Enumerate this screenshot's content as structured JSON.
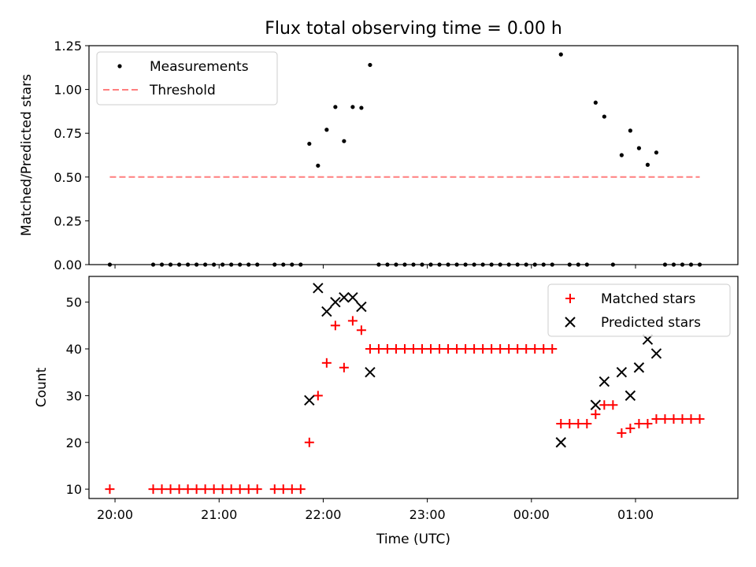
{
  "chart_data": {
    "title": "Flux total observing time = 0.00 h",
    "xlabel": "Time (UTC)",
    "x_tick_labels": [
      "20:00",
      "21:00",
      "22:00",
      "23:00",
      "00:00",
      "01:00"
    ],
    "colors": {
      "measurements": "#000000",
      "threshold": "#ff7f7f",
      "matched": "#ff0000",
      "predicted": "#000000"
    },
    "panels": [
      {
        "type": "scatter",
        "ylabel": "Matched/Predicted stars",
        "ylim": [
          0,
          1.25
        ],
        "y_ticks": [
          "0.00",
          "0.25",
          "0.50",
          "0.75",
          "1.00",
          "1.25"
        ],
        "legend_position": "upper left",
        "series": [
          {
            "name": "Measurements",
            "style": "dot",
            "points": [
              [
                "19:57",
                0
              ],
              [
                "20:22",
                0
              ],
              [
                "20:27",
                0
              ],
              [
                "20:32",
                0
              ],
              [
                "20:37",
                0
              ],
              [
                "20:42",
                0
              ],
              [
                "20:47",
                0
              ],
              [
                "20:52",
                0
              ],
              [
                "20:57",
                0
              ],
              [
                "21:02",
                0
              ],
              [
                "21:07",
                0
              ],
              [
                "21:12",
                0
              ],
              [
                "21:17",
                0
              ],
              [
                "21:22",
                0
              ],
              [
                "21:32",
                0
              ],
              [
                "21:37",
                0
              ],
              [
                "21:42",
                0
              ],
              [
                "21:47",
                0
              ],
              [
                "21:52",
                0.69
              ],
              [
                "21:57",
                0.565
              ],
              [
                "22:02",
                0.77
              ],
              [
                "22:07",
                0.9
              ],
              [
                "22:12",
                0.705
              ],
              [
                "22:17",
                0.9
              ],
              [
                "22:22",
                0.895
              ],
              [
                "22:27",
                1.14
              ],
              [
                "22:32",
                0
              ],
              [
                "22:37",
                0
              ],
              [
                "22:42",
                0
              ],
              [
                "22:47",
                0
              ],
              [
                "22:52",
                0
              ],
              [
                "22:57",
                0
              ],
              [
                "23:02",
                0
              ],
              [
                "23:07",
                0
              ],
              [
                "23:12",
                0
              ],
              [
                "23:17",
                0
              ],
              [
                "23:22",
                0
              ],
              [
                "23:27",
                0
              ],
              [
                "23:32",
                0
              ],
              [
                "23:37",
                0
              ],
              [
                "23:42",
                0
              ],
              [
                "23:47",
                0
              ],
              [
                "23:52",
                0
              ],
              [
                "23:57",
                0
              ],
              [
                "00:02",
                0
              ],
              [
                "00:07",
                0
              ],
              [
                "00:12",
                0
              ],
              [
                "00:17",
                1.2
              ],
              [
                "00:22",
                0
              ],
              [
                "00:27",
                0
              ],
              [
                "00:32",
                0
              ],
              [
                "00:37",
                0.925
              ],
              [
                "00:42",
                0.845
              ],
              [
                "00:47",
                0
              ],
              [
                "00:52",
                0.625
              ],
              [
                "00:57",
                0.765
              ],
              [
                "01:02",
                0.665
              ],
              [
                "01:07",
                0.57
              ],
              [
                "01:12",
                0.64
              ],
              [
                "01:17",
                0
              ],
              [
                "01:22",
                0
              ],
              [
                "01:27",
                0
              ],
              [
                "01:32",
                0
              ],
              [
                "01:37",
                0
              ]
            ]
          },
          {
            "name": "Threshold",
            "style": "dashed-line",
            "points": [
              [
                "19:57",
                0.5
              ],
              [
                "01:37",
                0.5
              ]
            ]
          }
        ]
      },
      {
        "type": "scatter",
        "ylabel": "Count",
        "ylim": [
          8,
          55.5
        ],
        "y_ticks": [
          "10",
          "20",
          "30",
          "40",
          "50"
        ],
        "legend_position": "upper right",
        "series": [
          {
            "name": "Matched stars",
            "style": "plus",
            "points": [
              [
                "19:57",
                10
              ],
              [
                "20:22",
                10
              ],
              [
                "20:27",
                10
              ],
              [
                "20:32",
                10
              ],
              [
                "20:37",
                10
              ],
              [
                "20:42",
                10
              ],
              [
                "20:47",
                10
              ],
              [
                "20:52",
                10
              ],
              [
                "20:57",
                10
              ],
              [
                "21:02",
                10
              ],
              [
                "21:07",
                10
              ],
              [
                "21:12",
                10
              ],
              [
                "21:17",
                10
              ],
              [
                "21:22",
                10
              ],
              [
                "21:32",
                10
              ],
              [
                "21:37",
                10
              ],
              [
                "21:42",
                10
              ],
              [
                "21:47",
                10
              ],
              [
                "21:52",
                20
              ],
              [
                "21:57",
                30
              ],
              [
                "22:02",
                37
              ],
              [
                "22:07",
                45
              ],
              [
                "22:12",
                36
              ],
              [
                "22:17",
                46
              ],
              [
                "22:22",
                44
              ],
              [
                "22:27",
                40
              ],
              [
                "22:32",
                40
              ],
              [
                "22:37",
                40
              ],
              [
                "22:42",
                40
              ],
              [
                "22:47",
                40
              ],
              [
                "22:52",
                40
              ],
              [
                "22:57",
                40
              ],
              [
                "23:02",
                40
              ],
              [
                "23:07",
                40
              ],
              [
                "23:12",
                40
              ],
              [
                "23:17",
                40
              ],
              [
                "23:22",
                40
              ],
              [
                "23:27",
                40
              ],
              [
                "23:32",
                40
              ],
              [
                "23:37",
                40
              ],
              [
                "23:42",
                40
              ],
              [
                "23:47",
                40
              ],
              [
                "23:52",
                40
              ],
              [
                "23:57",
                40
              ],
              [
                "00:02",
                40
              ],
              [
                "00:07",
                40
              ],
              [
                "00:12",
                40
              ],
              [
                "00:17",
                24
              ],
              [
                "00:22",
                24
              ],
              [
                "00:27",
                24
              ],
              [
                "00:32",
                24
              ],
              [
                "00:37",
                26
              ],
              [
                "00:42",
                28
              ],
              [
                "00:47",
                28
              ],
              [
                "00:52",
                22
              ],
              [
                "00:57",
                23
              ],
              [
                "01:02",
                24
              ],
              [
                "01:07",
                24
              ],
              [
                "01:12",
                25
              ],
              [
                "01:17",
                25
              ],
              [
                "01:22",
                25
              ],
              [
                "01:27",
                25
              ],
              [
                "01:32",
                25
              ],
              [
                "01:37",
                25
              ]
            ]
          },
          {
            "name": "Predicted stars",
            "style": "x",
            "points": [
              [
                "21:52",
                29
              ],
              [
                "21:57",
                53
              ],
              [
                "22:02",
                48
              ],
              [
                "22:07",
                50
              ],
              [
                "22:12",
                51
              ],
              [
                "22:17",
                51
              ],
              [
                "22:22",
                49
              ],
              [
                "22:27",
                35
              ],
              [
                "00:17",
                20
              ],
              [
                "00:37",
                28
              ],
              [
                "00:42",
                33
              ],
              [
                "00:52",
                35
              ],
              [
                "00:57",
                30
              ],
              [
                "01:02",
                36
              ],
              [
                "01:07",
                42
              ],
              [
                "01:12",
                39
              ]
            ]
          }
        ]
      }
    ]
  }
}
